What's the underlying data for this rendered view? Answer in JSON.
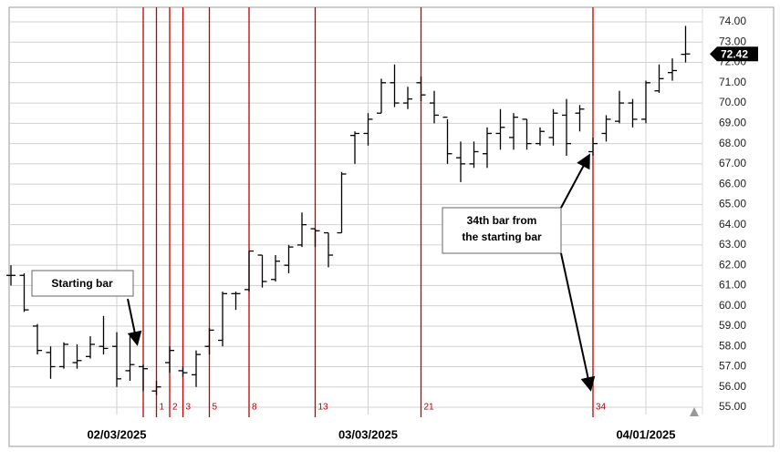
{
  "chart_data": {
    "type": "ohlc",
    "categories": [
      null,
      null,
      null,
      null,
      null,
      null,
      null,
      null,
      "02/03/2025",
      null,
      null,
      null,
      null,
      null,
      null,
      null,
      null,
      null,
      null,
      null,
      null,
      null,
      null,
      null,
      null,
      null,
      null,
      "03/03/2025",
      null,
      null,
      null,
      null,
      null,
      null,
      null,
      null,
      null,
      null,
      null,
      null,
      null,
      null,
      null,
      null,
      null,
      null,
      null,
      null,
      "04/01/2025",
      null,
      null,
      null
    ],
    "open": [
      61.5,
      61.5,
      59.0,
      57.7,
      57.0,
      57.2,
      57.5,
      58.0,
      58.0,
      56.8,
      57.0,
      55.8,
      57.2,
      56.8,
      56.6,
      58.0,
      58.3,
      60.6,
      60.8,
      62.5,
      61.3,
      62.0,
      63.0,
      63.8,
      63.6,
      63.6,
      68.4,
      68.5,
      69.5,
      71.0,
      70.0,
      71.0,
      70.0,
      69.3,
      67.3,
      67.0,
      67.5,
      68.5,
      68.3,
      69.2,
      68.0,
      68.3,
      69.4,
      69.5,
      67.6,
      68.5,
      69.1,
      70.0,
      69.2,
      70.6,
      71.5,
      72.4
    ],
    "high": [
      62.0,
      61.6,
      59.1,
      58.0,
      58.2,
      58.1,
      58.5,
      59.5,
      58.7,
      58.6,
      57.1,
      56.3,
      58.0,
      57.0,
      57.8,
      58.9,
      60.7,
      60.7,
      62.7,
      62.5,
      62.5,
      63.0,
      64.6,
      63.8,
      63.6,
      66.6,
      68.6,
      69.5,
      71.2,
      71.9,
      70.8,
      71.3,
      70.6,
      69.2,
      68.1,
      68.1,
      68.8,
      69.7,
      69.5,
      69.2,
      68.8,
      69.7,
      70.2,
      69.9,
      68.3,
      69.4,
      70.6,
      70.2,
      71.1,
      71.9,
      72.2,
      73.8
    ],
    "low": [
      61.0,
      59.7,
      57.6,
      56.4,
      56.9,
      56.9,
      57.4,
      57.6,
      56.0,
      56.3,
      55.8,
      55.6,
      56.7,
      56.5,
      56.0,
      57.6,
      58.0,
      59.8,
      60.7,
      60.9,
      61.2,
      61.6,
      62.9,
      62.9,
      61.9,
      63.6,
      67.0,
      67.9,
      69.5,
      69.8,
      69.7,
      70.1,
      69.0,
      67.0,
      66.1,
      66.8,
      66.8,
      67.7,
      67.7,
      67.7,
      67.9,
      67.9,
      67.4,
      68.6,
      67.4,
      68.1,
      69.0,
      68.8,
      69.0,
      70.5,
      71.1,
      72.0
    ],
    "close": [
      61.5,
      59.8,
      57.8,
      57.0,
      58.1,
      57.3,
      58.1,
      57.9,
      56.4,
      57.1,
      56.9,
      56.0,
      57.8,
      56.7,
      57.6,
      58.8,
      60.6,
      60.6,
      62.7,
      61.2,
      62.2,
      62.9,
      64.0,
      63.7,
      62.5,
      66.5,
      68.5,
      69.2,
      71.0,
      70.0,
      70.2,
      70.4,
      69.4,
      67.5,
      67.0,
      67.6,
      68.5,
      68.8,
      69.3,
      68.0,
      68.6,
      69.5,
      68.0,
      69.7,
      68.0,
      69.2,
      70.0,
      69.2,
      71.0,
      71.2,
      71.6,
      72.42
    ],
    "color": "#000000",
    "ylim": [
      54.64,
      74.72
    ],
    "yticks": [
      {
        "value": 55,
        "label": "55.00"
      },
      {
        "value": 56,
        "label": "56.00"
      },
      {
        "value": 57,
        "label": "57.00"
      },
      {
        "value": 58,
        "label": "58.00"
      },
      {
        "value": 59,
        "label": "59.00"
      },
      {
        "value": 60,
        "label": "60.00"
      },
      {
        "value": 61,
        "label": "61.00"
      },
      {
        "value": 62,
        "label": "62.00"
      },
      {
        "value": 63,
        "label": "63.00"
      },
      {
        "value": 64,
        "label": "64.00"
      },
      {
        "value": 65,
        "label": "65.00"
      },
      {
        "value": 66,
        "label": "66.00"
      },
      {
        "value": 67,
        "label": "67.00"
      },
      {
        "value": 68,
        "label": "68.00"
      },
      {
        "value": 69,
        "label": "69.00"
      },
      {
        "value": 70,
        "label": "70.00"
      },
      {
        "value": 71,
        "label": "71.00"
      },
      {
        "value": 72,
        "label": "72.00"
      },
      {
        "value": 73,
        "label": "73.00"
      },
      {
        "value": 74,
        "label": "74.00"
      }
    ],
    "grid": true,
    "fib_zones": {
      "bars": [
        10,
        11,
        12,
        13,
        15,
        18,
        23,
        31,
        44
      ],
      "labels": [
        null,
        1,
        2,
        3,
        5,
        8,
        13,
        21,
        34
      ],
      "color": "#c00000"
    },
    "annotations": [
      {
        "lines": [
          "Starting bar"
        ]
      },
      {
        "lines": [
          "34th bar from",
          "the starting bar"
        ]
      }
    ]
  }
}
